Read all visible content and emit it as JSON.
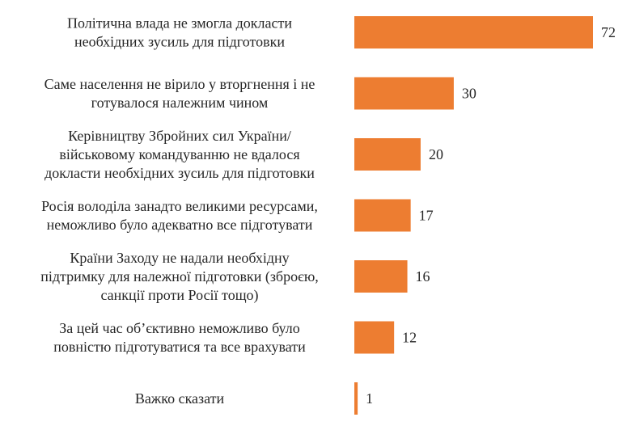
{
  "chart_data": {
    "type": "bar",
    "orientation": "horizontal",
    "title": "",
    "xlabel": "",
    "ylabel": "",
    "xlim": [
      0,
      72
    ],
    "grid": false,
    "legend": "none",
    "bar_color": "#ED7D31",
    "text_color": "#262626",
    "categories": [
      [
        "Політична влада не змогла докласти",
        "необхідних зусиль для підготовки"
      ],
      [
        "Саме населення не вірило у вторгнення і не",
        "готувалося належним чином"
      ],
      [
        "Керівництву Збройних сил України/",
        "військовому командуванню не вдалося",
        "докласти необхідних зусиль для підготовки"
      ],
      [
        "Росія володіла занадто великими ресурсами,",
        "неможливо було адекватно все підготувати"
      ],
      [
        "Країни Заходу не надали необхідну",
        "підтримку для належної підготовки (зброєю,",
        "санкції проти Росії тощо)"
      ],
      [
        "За цей час об’єктивно неможливо було",
        "повністю підготуватися та все врахувати"
      ],
      [
        "Важко сказати"
      ]
    ],
    "values": [
      72,
      30,
      20,
      17,
      16,
      12,
      1
    ]
  }
}
